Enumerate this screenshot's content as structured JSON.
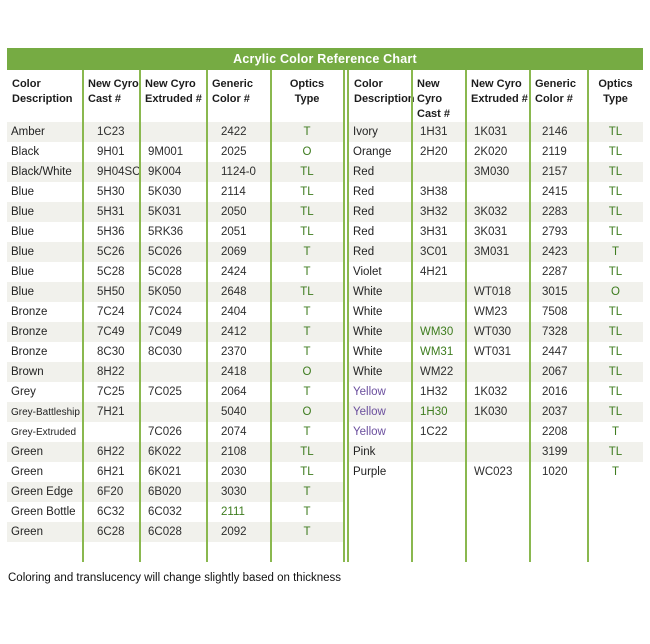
{
  "title": "Acrylic Color Reference Chart",
  "footnote": "Coloring and translucency will change slightly based on thickness",
  "colors": {
    "header_bar": "#76ab43",
    "grid_line": "#8ab84f",
    "optics_text": "#3e7c1f",
    "highlight_green": "#3e7c1f",
    "highlight_purple": "#6b4f9e",
    "row_stripe": "#f1f1ec"
  },
  "chart_data": [
    {
      "type": "table",
      "name": "left",
      "columns": [
        "Color\nDescription",
        "New Cyro\nCast #",
        "New Cyro\nExtruded #",
        "Generic\nColor #",
        "Optics\nType"
      ],
      "rows": [
        [
          "Amber",
          "1C23",
          "",
          "2422",
          "T"
        ],
        [
          "Black",
          "9H01",
          "9M001",
          "2025",
          "O"
        ],
        [
          "Black/White",
          "9H04SC",
          "9K004",
          "1124-0",
          "TL"
        ],
        [
          "Blue",
          "5H30",
          "5K030",
          "2114",
          "TL"
        ],
        [
          "Blue",
          "5H31",
          "5K031",
          "2050",
          "TL"
        ],
        [
          "Blue",
          "5H36",
          "5RK36",
          "2051",
          "TL"
        ],
        [
          "Blue",
          "5C26",
          "5C026",
          "2069",
          "T"
        ],
        [
          "Blue",
          "5C28",
          "5C028",
          "2424",
          "T"
        ],
        [
          "Blue",
          "5H50",
          "5K050",
          "2648",
          "TL"
        ],
        [
          "Bronze",
          "7C24",
          "7C024",
          "2404",
          "T"
        ],
        [
          "Bronze",
          "7C49",
          "7C049",
          "2412",
          "T"
        ],
        [
          "Bronze",
          "8C30",
          "8C030",
          "2370",
          "T"
        ],
        [
          "Brown",
          "8H22",
          "",
          "2418",
          "O"
        ],
        [
          "Grey",
          "7C25",
          "7C025",
          "2064",
          "T"
        ],
        [
          "Grey-Battleship",
          "7H21",
          "",
          "5040",
          "O"
        ],
        [
          "Grey-Extruded",
          "",
          "7C026",
          "2074",
          "T"
        ],
        [
          "Green",
          "6H22",
          "6K022",
          "2108",
          "TL"
        ],
        [
          "Green",
          "6H21",
          "6K021",
          "2030",
          "TL"
        ],
        [
          "Green Edge",
          "6F20",
          "6B020",
          "3030",
          "T"
        ],
        [
          "Green Bottle",
          "6C32",
          "6C032",
          "2111",
          "T"
        ],
        [
          "Green",
          "6C28",
          "6C028",
          "2092",
          "T"
        ]
      ]
    },
    {
      "type": "table",
      "name": "right",
      "columns": [
        "Color\nDescription",
        "New Cyro\nCast #",
        "New Cyro\nExtruded #",
        "Generic\nColor #",
        "Optics\nType"
      ],
      "rows": [
        [
          "Ivory",
          "1H31",
          "1K031",
          "2146",
          "TL"
        ],
        [
          "Orange",
          "2H20",
          "2K020",
          "2119",
          "TL"
        ],
        [
          "Red",
          "",
          "3M030",
          "2157",
          "TL"
        ],
        [
          "Red",
          "3H38",
          "",
          "2415",
          "TL"
        ],
        [
          "Red",
          "3H32",
          "3K032",
          "2283",
          "TL"
        ],
        [
          "Red",
          "3H31",
          "3K031",
          "2793",
          "TL"
        ],
        [
          "Red",
          "3C01",
          "3M031",
          "2423",
          "T"
        ],
        [
          "Violet",
          "4H21",
          "",
          "2287",
          "TL"
        ],
        [
          "White",
          "",
          "WT018",
          "3015",
          "O"
        ],
        [
          "White",
          "",
          "WM23",
          "7508",
          "TL"
        ],
        [
          "White",
          "WM30",
          "WT030",
          "7328",
          "TL"
        ],
        [
          "White",
          "WM31",
          "WT031",
          "2447",
          "TL"
        ],
        [
          "White",
          "WM22",
          "",
          "2067",
          "TL"
        ],
        [
          "Yellow",
          "1H32",
          "1K032",
          "2016",
          "TL"
        ],
        [
          "Yellow",
          "1H30",
          "1K030",
          "2037",
          "TL"
        ],
        [
          "Yellow",
          "1C22",
          "",
          "2208",
          "T"
        ],
        [
          "Pink",
          "",
          "",
          "3199",
          "TL"
        ],
        [
          "Purple",
          "",
          "WC023",
          "1020",
          "T"
        ]
      ]
    }
  ],
  "highlights": [
    {
      "table": "left",
      "row": 19,
      "col": 3,
      "color": "green"
    },
    {
      "table": "right",
      "row": 10,
      "col": 1,
      "color": "green"
    },
    {
      "table": "right",
      "row": 11,
      "col": 1,
      "color": "green"
    },
    {
      "table": "right",
      "row": 13,
      "col": 0,
      "color": "purple"
    },
    {
      "table": "right",
      "row": 14,
      "col": 0,
      "color": "purple"
    },
    {
      "table": "right",
      "row": 14,
      "col": 1,
      "color": "green"
    },
    {
      "table": "right",
      "row": 15,
      "col": 0,
      "color": "purple"
    }
  ]
}
